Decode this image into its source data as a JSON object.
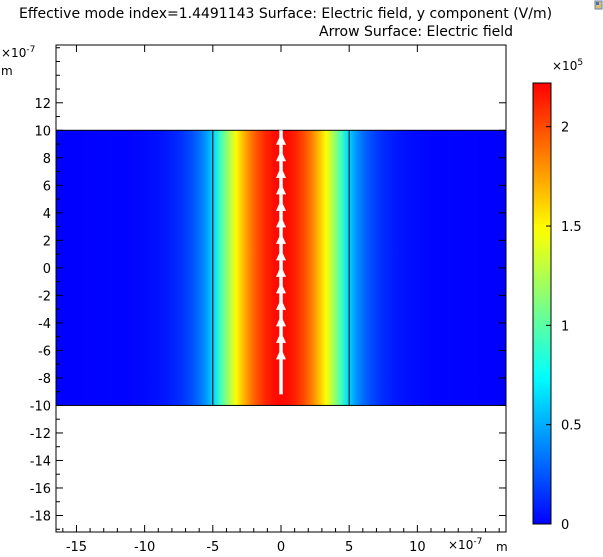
{
  "titles": {
    "line1": "Effective mode index=1.4491143   Surface: Electric field, y component (V/m)",
    "line2": "Arrow Surface: Electric field"
  },
  "axes": {
    "y_exponent_label": "×10",
    "y_exponent": "-7",
    "y_unit": "m",
    "x_exponent_label": "×10",
    "x_exponent": "-7",
    "x_unit": "m"
  },
  "colorbar": {
    "exponent_label": "×10",
    "exponent": "5"
  },
  "chart_data": {
    "type": "heatmap",
    "x_ticks": [
      -15,
      -10,
      -5,
      0,
      5,
      10
    ],
    "y_ticks": [
      12,
      10,
      8,
      6,
      4,
      2,
      0,
      -2,
      -4,
      -6,
      -8,
      -10,
      -12,
      -14,
      -16,
      -18
    ],
    "xlim": [
      -16.5,
      16.5
    ],
    "ylim": [
      -19.2,
      16.2
    ],
    "domain": {
      "x": [
        -16.5,
        16.5
      ],
      "y": [
        -10,
        10
      ]
    },
    "core_boundaries_x": [
      -5,
      5
    ],
    "field_peak": 2.2,
    "field_edge": 0.15,
    "arrows": {
      "x": 0,
      "y_start": -9.2,
      "y_end": 10,
      "heads_y": [
        -6,
        -4.8,
        -3.6,
        -2.4,
        -1.2,
        0,
        1.2,
        2.4,
        3.6,
        4.8,
        6,
        7.2,
        8.4,
        9.6
      ]
    },
    "colorbar_ticks": [
      0,
      0.5,
      1,
      1.5,
      2
    ],
    "colorbar_range": [
      0,
      2.22
    ],
    "colormap": [
      "#0000ff",
      "#00ffff",
      "#ffff00",
      "#ff0000"
    ]
  },
  "colors": {
    "arrow": "#ffffff",
    "boundary": "#000000",
    "axes": "#000000"
  },
  "icons": {
    "corner": "toolbar-pin-icon"
  }
}
